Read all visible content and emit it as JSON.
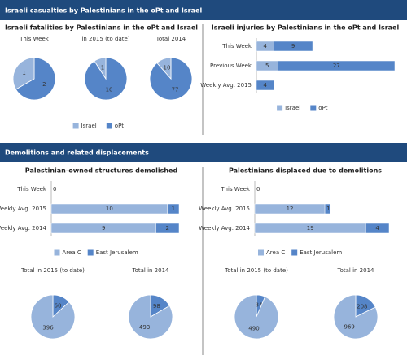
{
  "banners": [
    "Israeli casualties by Palestinians in the oPt and Israel",
    "Demolitions and related displacements"
  ],
  "chart_data": [
    {
      "type": "pie",
      "title": "Israeli fatalities by Palestinians in the oPt and Israel",
      "categories": [
        "Israel",
        "oPt"
      ],
      "colors": [
        "#97b4dc",
        "#5585c8"
      ],
      "pies": [
        {
          "title": "This Week",
          "values": [
            1,
            2
          ]
        },
        {
          "title": "in 2015 (to date)",
          "values": [
            1,
            10
          ]
        },
        {
          "title": "Total 2014",
          "values": [
            10,
            77
          ]
        }
      ]
    },
    {
      "type": "bar",
      "title": "Israeli injuries by Palestinians in the oPt and Israel",
      "categories": [
        "This Week",
        "Previous Week",
        "Weekly Avg. 2015"
      ],
      "series": [
        {
          "name": "Israel",
          "color": "#97b4dc",
          "values": [
            4,
            5,
            0
          ]
        },
        {
          "name": "oPt",
          "color": "#5585c8",
          "values": [
            9,
            27,
            4
          ]
        }
      ]
    },
    {
      "type": "bar",
      "title": "Palestinian-owned structures demolished",
      "categories": [
        "This Week",
        "Weekly Avg. 2015",
        "Weekly Avg. 2014"
      ],
      "series": [
        {
          "name": "Area C",
          "color": "#97b4dc",
          "values": [
            0,
            10,
            9
          ]
        },
        {
          "name": "East Jerusalem",
          "color": "#5585c8",
          "values": [
            null,
            1,
            2
          ]
        }
      ],
      "pies": [
        {
          "title": "Total in 2015 (to date)",
          "values": [
            396,
            60
          ]
        },
        {
          "title": "Total in 2014",
          "values": [
            493,
            98
          ]
        }
      ]
    },
    {
      "type": "bar",
      "title": "Palestinians displaced due to demolitions",
      "categories": [
        "This Week",
        "Weekly Avg. 2015",
        "Weekly Avg. 2014"
      ],
      "series": [
        {
          "name": "Area C",
          "color": "#97b4dc",
          "values": [
            0,
            12,
            19
          ]
        },
        {
          "name": "East Jerusalem",
          "color": "#5585c8",
          "values": [
            null,
            1,
            4
          ]
        }
      ],
      "pies": [
        {
          "title": "Total in 2015 (to date)",
          "values": [
            490,
            34
          ]
        },
        {
          "title": "Total in 2014",
          "values": [
            969,
            208
          ]
        }
      ]
    }
  ]
}
